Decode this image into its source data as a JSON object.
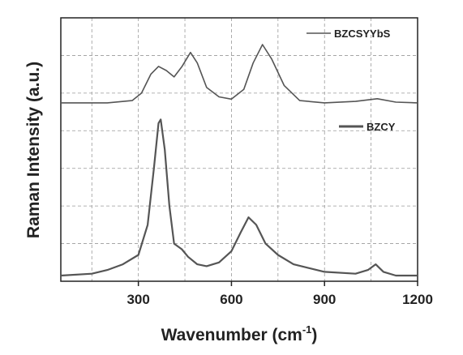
{
  "chart_data": {
    "type": "line",
    "xlabel": "Wavenumber (cm",
    "xlabel_sup": "-1",
    "xlabel_end": ")",
    "ylabel": "Raman Intensity (a.u.)",
    "xlim": [
      50,
      1200
    ],
    "xticks": [
      300,
      600,
      900,
      1200
    ],
    "xgrid": [
      150,
      300,
      450,
      600,
      750,
      900,
      1050
    ],
    "ylim": [
      0,
      7
    ],
    "ygrid": [
      1,
      2,
      3,
      4,
      5,
      6
    ],
    "grid": true,
    "series": [
      {
        "name": "BZCSYYbS",
        "color": "#555555",
        "x": [
          50,
          200,
          280,
          310,
          340,
          365,
          390,
          415,
          440,
          468,
          490,
          520,
          560,
          600,
          640,
          670,
          700,
          730,
          770,
          820,
          900,
          1000,
          1070,
          1130,
          1200
        ],
        "values": [
          4.74,
          4.74,
          4.8,
          5.0,
          5.5,
          5.71,
          5.6,
          5.43,
          5.7,
          6.08,
          5.8,
          5.15,
          4.9,
          4.84,
          5.1,
          5.8,
          6.29,
          5.9,
          5.2,
          4.8,
          4.74,
          4.78,
          4.85,
          4.76,
          4.74
        ]
      },
      {
        "name": "BZCY",
        "color": "#555555",
        "x": [
          50,
          150,
          200,
          250,
          300,
          330,
          350,
          365,
          372,
          385,
          400,
          415,
          440,
          460,
          490,
          520,
          560,
          600,
          630,
          655,
          680,
          710,
          750,
          800,
          900,
          1000,
          1040,
          1065,
          1090,
          1130,
          1200
        ],
        "values": [
          0.15,
          0.2,
          0.3,
          0.45,
          0.7,
          1.5,
          3.0,
          4.2,
          4.3,
          3.5,
          2.0,
          1.0,
          0.85,
          0.65,
          0.45,
          0.4,
          0.5,
          0.8,
          1.3,
          1.7,
          1.5,
          1.0,
          0.7,
          0.45,
          0.25,
          0.2,
          0.3,
          0.45,
          0.25,
          0.15,
          0.15
        ]
      }
    ]
  }
}
